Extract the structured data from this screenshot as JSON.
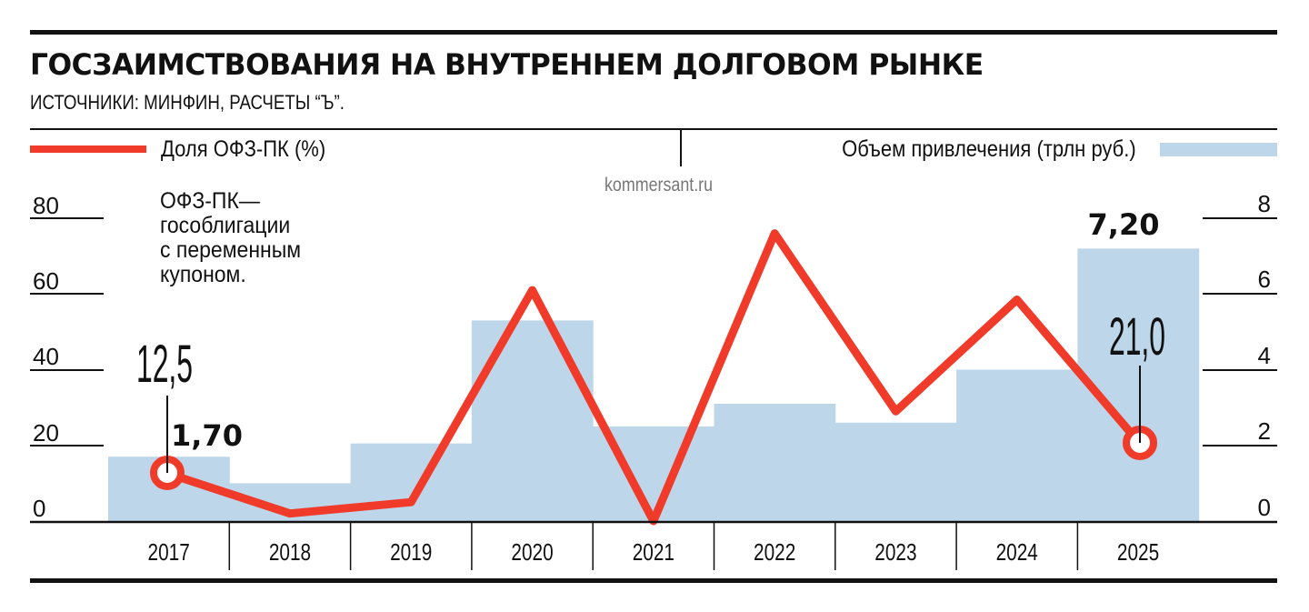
{
  "header": {
    "title": "ГОСЗАИМСТВОВАНИЯ НА ВНУТРЕННЕМ ДОЛГОВОМ РЫНКЕ",
    "subtitle": "ИСТОЧНИКИ: МИНФИН, РАСЧЕТЫ “Ъ”."
  },
  "legend": {
    "line_label": "Доля ОФЗ-ПК (%)",
    "bar_label": "Объем привлечения (трлн руб.)"
  },
  "watermark": "kommersant.ru",
  "note": [
    "ОФЗ-ПК—",
    "гособлигации",
    "с переменным",
    "купоном."
  ],
  "annotations": {
    "first_bar_label": "1,70",
    "first_line_label": "12,5",
    "last_bar_label": "7,20",
    "last_line_label": "21,0"
  },
  "colors": {
    "line": "#f03a2a",
    "bar": "#bdd6ea",
    "text": "#111111",
    "watermark": "#777777"
  },
  "chart_data": {
    "type": "bar",
    "title": "ГОСЗАИМСТВОВАНИЯ НА ВНУТРЕННЕМ ДОЛГОВОМ РЫНКЕ",
    "subtitle": "ИСТОЧНИКИ: МИНФИН, РАСЧЕТЫ “Ъ”.",
    "categories": [
      "2017",
      "2018",
      "2019",
      "2020",
      "2021",
      "2022",
      "2023",
      "2024",
      "2025"
    ],
    "series": [
      {
        "name": "Объем привлечения (трлн руб.)",
        "type": "bar",
        "axis": "right",
        "values": [
          1.7,
          1.0,
          2.05,
          5.3,
          2.5,
          3.1,
          2.6,
          4.0,
          7.2
        ]
      },
      {
        "name": "Доля ОФЗ-ПК (%)",
        "type": "line",
        "axis": "left",
        "values": [
          12.5,
          2,
          5,
          61,
          0,
          76,
          29,
          58.5,
          21.0
        ]
      }
    ],
    "left_axis": {
      "ticks": [
        "0",
        "20",
        "40",
        "60",
        "80"
      ],
      "range": [
        0,
        80
      ]
    },
    "right_axis": {
      "ticks": [
        "0",
        "2",
        "4",
        "6",
        "8"
      ],
      "range": [
        0,
        8
      ]
    },
    "legend_position": "top",
    "grid": false
  }
}
